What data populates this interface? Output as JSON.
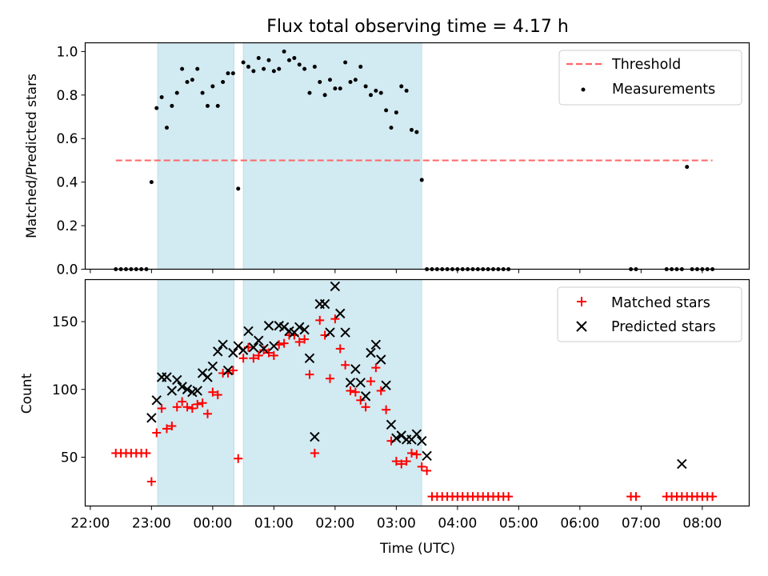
{
  "chart_data": [
    {
      "type": "scatter",
      "title": "Flux total observing time = 4.17 h",
      "xlabel": "",
      "ylabel": "Matched/Predicted stars",
      "ylim": [
        0,
        1.04
      ],
      "yticks": [
        "0.0",
        "0.2",
        "0.4",
        "0.6",
        "0.8",
        "1.0"
      ],
      "xlim": [
        "21:55",
        "08:46"
      ],
      "x_unit": "time (UTC)",
      "grid": false,
      "legend_position": "top-right",
      "shaded_intervals": [
        [
          "23:06",
          "00:21"
        ],
        [
          "00:30",
          "03:25"
        ]
      ],
      "shade_color": "#add8e6",
      "threshold": {
        "name": "Threshold",
        "value": 0.5,
        "x_range": [
          "22:25",
          "08:10"
        ],
        "color": "#ff6666",
        "style": "dashed"
      },
      "series": [
        {
          "name": "Measurements",
          "color": "#000000",
          "marker": "dot",
          "x": [
            "22:25",
            "22:30",
            "22:35",
            "22:40",
            "22:45",
            "22:50",
            "22:55",
            "23:00",
            "23:05",
            "23:10",
            "23:15",
            "23:20",
            "23:25",
            "23:30",
            "23:35",
            "23:40",
            "23:45",
            "23:50",
            "23:55",
            "00:00",
            "00:05",
            "00:10",
            "00:15",
            "00:20",
            "00:25",
            "00:30",
            "00:35",
            "00:40",
            "00:45",
            "00:50",
            "00:55",
            "01:00",
            "01:05",
            "01:10",
            "01:15",
            "01:20",
            "01:25",
            "01:30",
            "01:35",
            "01:40",
            "01:45",
            "01:50",
            "01:55",
            "02:00",
            "02:05",
            "02:10",
            "02:15",
            "02:20",
            "02:25",
            "02:30",
            "02:35",
            "02:40",
            "02:45",
            "02:50",
            "02:55",
            "03:00",
            "03:05",
            "03:10",
            "03:15",
            "03:20",
            "03:25",
            "03:30",
            "03:35",
            "03:40",
            "03:45",
            "03:50",
            "03:55",
            "04:00",
            "04:05",
            "04:10",
            "04:15",
            "04:20",
            "04:25",
            "04:30",
            "04:35",
            "04:40",
            "04:45",
            "04:50",
            "06:50",
            "06:55",
            "07:25",
            "07:30",
            "07:35",
            "07:40",
            "07:45",
            "07:50",
            "07:55",
            "08:00",
            "08:05",
            "08:10"
          ],
          "y": [
            0,
            0,
            0,
            0,
            0,
            0,
            0,
            0.4,
            0.74,
            0.79,
            0.65,
            0.75,
            0.81,
            0.92,
            0.86,
            0.87,
            0.92,
            0.81,
            0.75,
            0.84,
            0.75,
            0.86,
            0.9,
            0.9,
            0.37,
            0.95,
            0.93,
            0.91,
            0.97,
            0.92,
            0.96,
            0.91,
            0.92,
            1.0,
            0.96,
            0.97,
            0.94,
            0.92,
            0.81,
            0.93,
            0.86,
            0.8,
            0.87,
            0.83,
            0.83,
            0.95,
            0.86,
            0.87,
            0.93,
            0.84,
            0.8,
            0.82,
            0.81,
            0.73,
            0.65,
            0.72,
            0.84,
            0.82,
            0.64,
            0.63,
            0.41,
            0,
            0,
            0,
            0,
            0,
            0,
            0,
            0,
            0,
            0,
            0,
            0,
            0,
            0,
            0,
            0,
            0,
            0,
            0,
            0,
            0,
            0,
            0,
            0.47,
            0,
            0,
            0,
            0,
            0
          ]
        }
      ]
    },
    {
      "type": "scatter",
      "title": "",
      "xlabel": "Time (UTC)",
      "ylabel": "Count",
      "ylim": [
        14,
        181
      ],
      "yticks": [
        "50",
        "100",
        "150"
      ],
      "xticks": [
        "22:00",
        "23:00",
        "00:00",
        "01:00",
        "02:00",
        "03:00",
        "04:00",
        "05:00",
        "06:00",
        "07:00",
        "08:00"
      ],
      "xlim": [
        "21:55",
        "08:46"
      ],
      "grid": false,
      "legend_position": "top-right",
      "shaded_intervals": [
        [
          "23:06",
          "00:21"
        ],
        [
          "00:30",
          "03:25"
        ]
      ],
      "shade_color": "#add8e6",
      "series": [
        {
          "name": "Matched stars",
          "color": "#ff0000",
          "marker": "plus",
          "x": [
            "22:25",
            "22:30",
            "22:35",
            "22:40",
            "22:45",
            "22:50",
            "22:55",
            "23:00",
            "23:05",
            "23:10",
            "23:15",
            "23:20",
            "23:25",
            "23:30",
            "23:35",
            "23:40",
            "23:45",
            "23:50",
            "23:55",
            "00:00",
            "00:05",
            "00:10",
            "00:15",
            "00:20",
            "00:25",
            "00:30",
            "00:35",
            "00:40",
            "00:45",
            "00:50",
            "00:55",
            "01:00",
            "01:05",
            "01:10",
            "01:15",
            "01:20",
            "01:25",
            "01:30",
            "01:35",
            "01:40",
            "01:45",
            "01:50",
            "01:55",
            "02:00",
            "02:05",
            "02:10",
            "02:15",
            "02:20",
            "02:25",
            "02:30",
            "02:35",
            "02:40",
            "02:45",
            "02:50",
            "02:55",
            "03:00",
            "03:05",
            "03:10",
            "03:15",
            "03:20",
            "03:25",
            "03:30",
            "03:35",
            "03:40",
            "03:45",
            "03:50",
            "03:55",
            "04:00",
            "04:05",
            "04:10",
            "04:15",
            "04:20",
            "04:25",
            "04:30",
            "04:35",
            "04:40",
            "04:45",
            "04:50",
            "06:50",
            "06:55",
            "07:25",
            "07:30",
            "07:35",
            "07:40",
            "07:45",
            "07:50",
            "07:55",
            "08:00",
            "08:05",
            "08:10"
          ],
          "y": [
            53,
            53,
            53,
            53,
            53,
            53,
            53,
            32,
            68,
            86,
            71,
            73,
            87,
            91,
            87,
            86,
            89,
            90,
            82,
            98,
            96,
            112,
            112,
            114,
            49,
            123,
            131,
            123,
            125,
            129,
            127,
            125,
            133,
            134,
            140,
            140,
            135,
            137,
            111,
            53,
            151,
            140,
            108,
            152,
            130,
            118,
            99,
            98,
            92,
            87,
            106,
            116,
            99,
            85,
            62,
            47,
            45,
            47,
            53,
            52,
            43,
            40,
            21,
            21,
            21,
            21,
            21,
            21,
            21,
            21,
            21,
            21,
            21,
            21,
            21,
            21,
            21,
            21,
            21,
            21,
            21,
            21,
            21,
            21,
            21,
            21,
            21,
            21,
            21,
            21
          ]
        },
        {
          "name": "Predicted stars",
          "color": "#000000",
          "marker": "x",
          "x": [
            "23:00",
            "23:05",
            "23:10",
            "23:15",
            "23:20",
            "23:25",
            "23:30",
            "23:35",
            "23:40",
            "23:45",
            "23:50",
            "23:55",
            "00:00",
            "00:05",
            "00:10",
            "00:15",
            "00:20",
            "00:25",
            "00:30",
            "00:35",
            "00:40",
            "00:45",
            "00:50",
            "00:55",
            "01:00",
            "01:05",
            "01:10",
            "01:15",
            "01:20",
            "01:25",
            "01:30",
            "01:35",
            "01:40",
            "01:45",
            "01:50",
            "01:55",
            "02:00",
            "02:05",
            "02:10",
            "02:15",
            "02:20",
            "02:25",
            "02:30",
            "02:35",
            "02:40",
            "02:45",
            "02:50",
            "02:55",
            "03:00",
            "03:05",
            "03:10",
            "03:15",
            "03:20",
            "03:25",
            "03:30",
            "07:40"
          ],
          "y": [
            79,
            92,
            109,
            109,
            99,
            107,
            102,
            100,
            98,
            99,
            112,
            109,
            117,
            128,
            133,
            114,
            127,
            132,
            129,
            143,
            131,
            136,
            130,
            147,
            132,
            147,
            146,
            143,
            142,
            146,
            144,
            123,
            65,
            163,
            163,
            142,
            176,
            156,
            142,
            105,
            115,
            105,
            95,
            127,
            133,
            122,
            103,
            74,
            64,
            66,
            63,
            63,
            67,
            62,
            51,
            45
          ]
        }
      ]
    }
  ]
}
